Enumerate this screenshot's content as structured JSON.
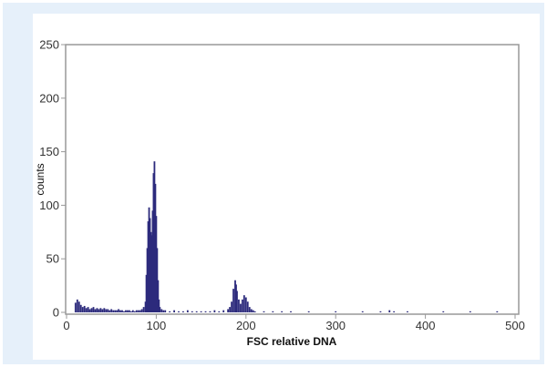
{
  "chart_data": {
    "type": "bar",
    "title": "",
    "xlabel": "FSC relative DNA",
    "ylabel": "counts",
    "xlim": [
      0,
      500
    ],
    "ylim": [
      0,
      250
    ],
    "xticks": [
      "0",
      "100",
      "200",
      "300",
      "400",
      "500"
    ],
    "yticks": [
      "0",
      "50",
      "100",
      "150",
      "200",
      "250"
    ],
    "grid": false,
    "colors": {
      "bar": "#2c2a7c",
      "frame": "#999999",
      "panel": "#e6f0fa"
    },
    "bins": [
      [
        10,
        9
      ],
      [
        12,
        12
      ],
      [
        14,
        10
      ],
      [
        16,
        7
      ],
      [
        18,
        5
      ],
      [
        20,
        6
      ],
      [
        22,
        4
      ],
      [
        24,
        5
      ],
      [
        26,
        3
      ],
      [
        28,
        4
      ],
      [
        30,
        5
      ],
      [
        32,
        3
      ],
      [
        34,
        4
      ],
      [
        36,
        3
      ],
      [
        38,
        4
      ],
      [
        40,
        3
      ],
      [
        42,
        4
      ],
      [
        44,
        3
      ],
      [
        46,
        3
      ],
      [
        48,
        2
      ],
      [
        50,
        3
      ],
      [
        52,
        2
      ],
      [
        54,
        2
      ],
      [
        56,
        2
      ],
      [
        58,
        3
      ],
      [
        60,
        2
      ],
      [
        62,
        2
      ],
      [
        64,
        1
      ],
      [
        66,
        2
      ],
      [
        68,
        2
      ],
      [
        70,
        2
      ],
      [
        72,
        1
      ],
      [
        74,
        2
      ],
      [
        76,
        1
      ],
      [
        78,
        2
      ],
      [
        80,
        2
      ],
      [
        82,
        2
      ],
      [
        84,
        3
      ],
      [
        86,
        5
      ],
      [
        88,
        10
      ],
      [
        89,
        35
      ],
      [
        90,
        60
      ],
      [
        91,
        85
      ],
      [
        92,
        98
      ],
      [
        93,
        88
      ],
      [
        94,
        75
      ],
      [
        95,
        72
      ],
      [
        96,
        95
      ],
      [
        97,
        130
      ],
      [
        98,
        141
      ],
      [
        99,
        120
      ],
      [
        100,
        90
      ],
      [
        101,
        60
      ],
      [
        102,
        30
      ],
      [
        103,
        12
      ],
      [
        104,
        5
      ],
      [
        106,
        3
      ],
      [
        108,
        2
      ],
      [
        110,
        2
      ],
      [
        115,
        1
      ],
      [
        120,
        2
      ],
      [
        125,
        1
      ],
      [
        130,
        1
      ],
      [
        135,
        2
      ],
      [
        140,
        1
      ],
      [
        145,
        1
      ],
      [
        150,
        1
      ],
      [
        155,
        1
      ],
      [
        160,
        1
      ],
      [
        165,
        2
      ],
      [
        170,
        1
      ],
      [
        175,
        2
      ],
      [
        180,
        3
      ],
      [
        182,
        5
      ],
      [
        184,
        10
      ],
      [
        186,
        22
      ],
      [
        188,
        30
      ],
      [
        189,
        26
      ],
      [
        190,
        20
      ],
      [
        192,
        12
      ],
      [
        194,
        8
      ],
      [
        196,
        12
      ],
      [
        198,
        16
      ],
      [
        200,
        14
      ],
      [
        202,
        10
      ],
      [
        204,
        5
      ],
      [
        206,
        3
      ],
      [
        208,
        2
      ],
      [
        210,
        1
      ],
      [
        220,
        1
      ],
      [
        230,
        1
      ],
      [
        240,
        1
      ],
      [
        250,
        1
      ],
      [
        270,
        1
      ],
      [
        300,
        1
      ],
      [
        330,
        1
      ],
      [
        350,
        1
      ],
      [
        360,
        2
      ],
      [
        365,
        1
      ],
      [
        380,
        1
      ],
      [
        420,
        1
      ],
      [
        450,
        1
      ],
      [
        480,
        1
      ]
    ]
  }
}
